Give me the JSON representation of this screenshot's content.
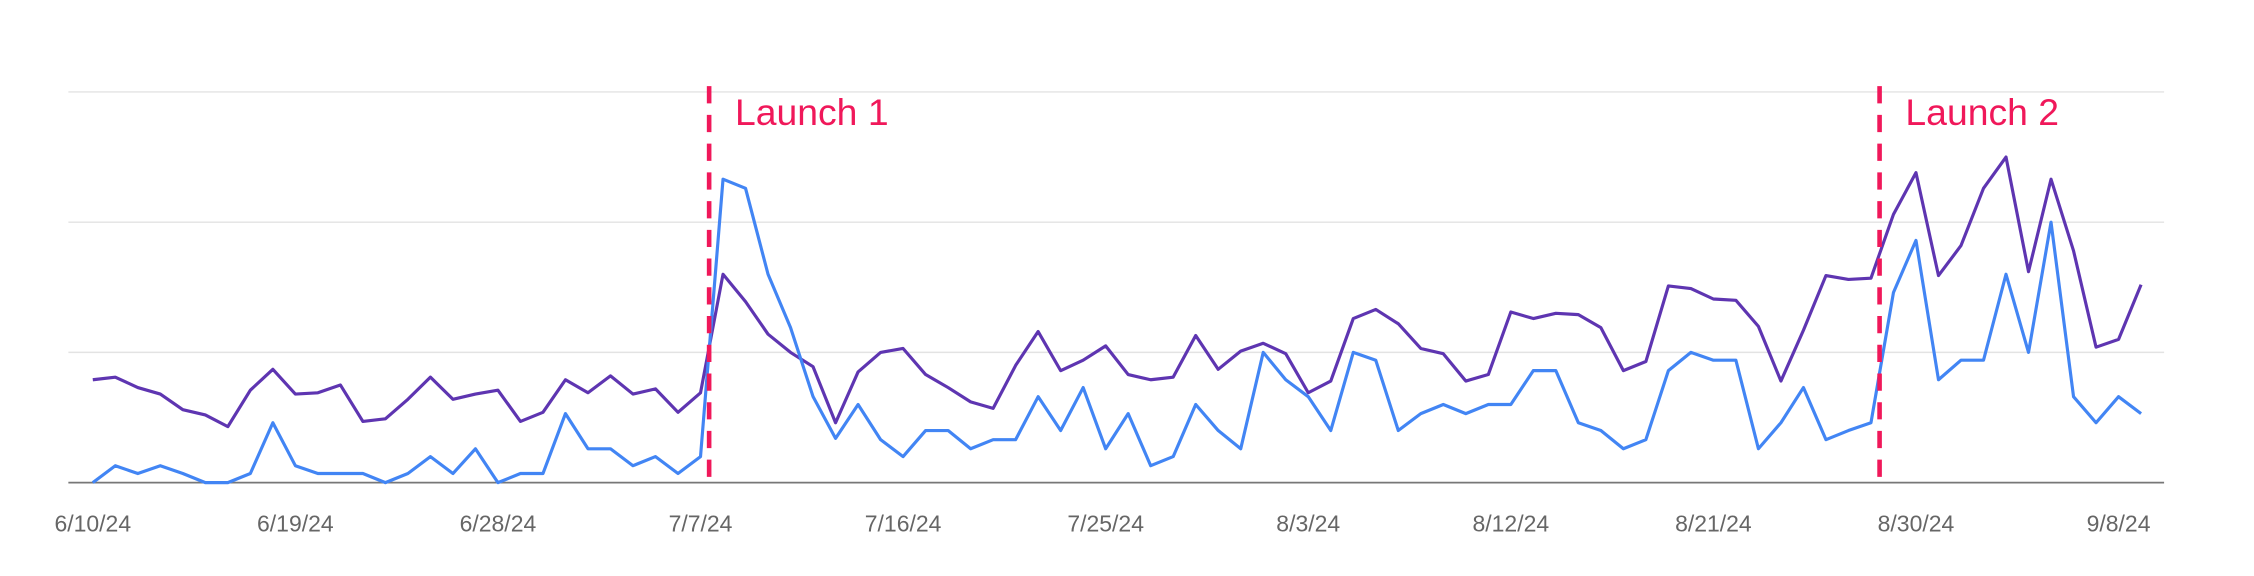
{
  "chart_data": {
    "type": "line",
    "categories": [
      "6/10/24",
      null,
      null,
      null,
      null,
      null,
      null,
      null,
      null,
      "6/19/24",
      null,
      null,
      null,
      null,
      null,
      null,
      null,
      null,
      "6/28/24",
      null,
      null,
      null,
      null,
      null,
      null,
      null,
      null,
      "7/7/24",
      null,
      null,
      null,
      null,
      null,
      null,
      null,
      null,
      "7/16/24",
      null,
      null,
      null,
      null,
      null,
      null,
      null,
      null,
      "7/25/24",
      null,
      null,
      null,
      null,
      null,
      null,
      null,
      null,
      "8/3/24",
      null,
      null,
      null,
      null,
      null,
      null,
      null,
      null,
      "8/12/24",
      null,
      null,
      null,
      null,
      null,
      null,
      null,
      null,
      "8/21/24",
      null,
      null,
      null,
      null,
      null,
      null,
      null,
      null,
      "8/30/24",
      null,
      null,
      null,
      null,
      null,
      null,
      null,
      null,
      "9/8/24",
      null
    ],
    "series": [
      {
        "color": "#5e35b1",
        "values": [
          0.79,
          0.81,
          0.73,
          0.68,
          0.56,
          0.52,
          0.43,
          0.71,
          0.87,
          0.68,
          0.69,
          0.75,
          0.47,
          0.49,
          0.64,
          0.81,
          0.64,
          0.68,
          0.71,
          0.47,
          0.54,
          0.79,
          0.69,
          0.82,
          0.68,
          0.72,
          0.54,
          0.69,
          1.6,
          1.39,
          1.14,
          1.0,
          0.89,
          0.46,
          0.85,
          1.0,
          1.03,
          0.83,
          0.73,
          0.62,
          0.57,
          0.9,
          1.16,
          0.86,
          0.94,
          1.05,
          0.83,
          0.79,
          0.81,
          1.13,
          0.87,
          1.01,
          1.07,
          0.99,
          0.69,
          0.78,
          1.26,
          1.33,
          1.22,
          1.03,
          0.99,
          0.78,
          0.83,
          1.31,
          1.26,
          1.3,
          1.29,
          1.19,
          0.86,
          0.93,
          1.51,
          1.49,
          1.41,
          1.4,
          1.2,
          0.78,
          1.17,
          1.59,
          1.56,
          1.57,
          2.06,
          2.38,
          1.59,
          1.82,
          2.26,
          2.5,
          1.62,
          2.33,
          1.78,
          1.04,
          1.1,
          1.52
        ]
      },
      {
        "color": "#4285f4",
        "values": [
          0,
          0.13,
          0.07,
          0.13,
          0.07,
          0,
          0,
          0.07,
          0.46,
          0.13,
          0.07,
          0.07,
          0.07,
          0,
          0.07,
          0.2,
          0.07,
          0.26,
          0,
          0.07,
          0.07,
          0.53,
          0.26,
          0.26,
          0.13,
          0.2,
          0.07,
          0.2,
          2.33,
          2.26,
          1.6,
          1.19,
          0.66,
          0.34,
          0.6,
          0.33,
          0.2,
          0.4,
          0.4,
          0.26,
          0.33,
          0.33,
          0.66,
          0.4,
          0.73,
          0.26,
          0.53,
          0.13,
          0.2,
          0.6,
          0.4,
          0.26,
          1.0,
          0.79,
          0.66,
          0.4,
          1.0,
          0.94,
          0.4,
          0.53,
          0.6,
          0.53,
          0.6,
          0.6,
          0.86,
          0.86,
          0.46,
          0.4,
          0.26,
          0.33,
          0.86,
          1.0,
          0.94,
          0.94,
          0.26,
          0.46,
          0.73,
          0.33,
          0.4,
          0.46,
          1.46,
          1.86,
          0.79,
          0.94,
          0.94,
          1.6,
          1.0,
          2.0,
          0.66,
          0.46,
          0.66,
          0.53
        ]
      }
    ],
    "ylim": [
      0,
      3
    ],
    "yticks": [
      0,
      1,
      2,
      3
    ],
    "grid": true,
    "annotations": [
      {
        "text": "Launch 1",
        "x": 27,
        "color": "#f0185a"
      },
      {
        "text": "Launch 2",
        "x": 79,
        "color": "#f0185a"
      }
    ]
  }
}
